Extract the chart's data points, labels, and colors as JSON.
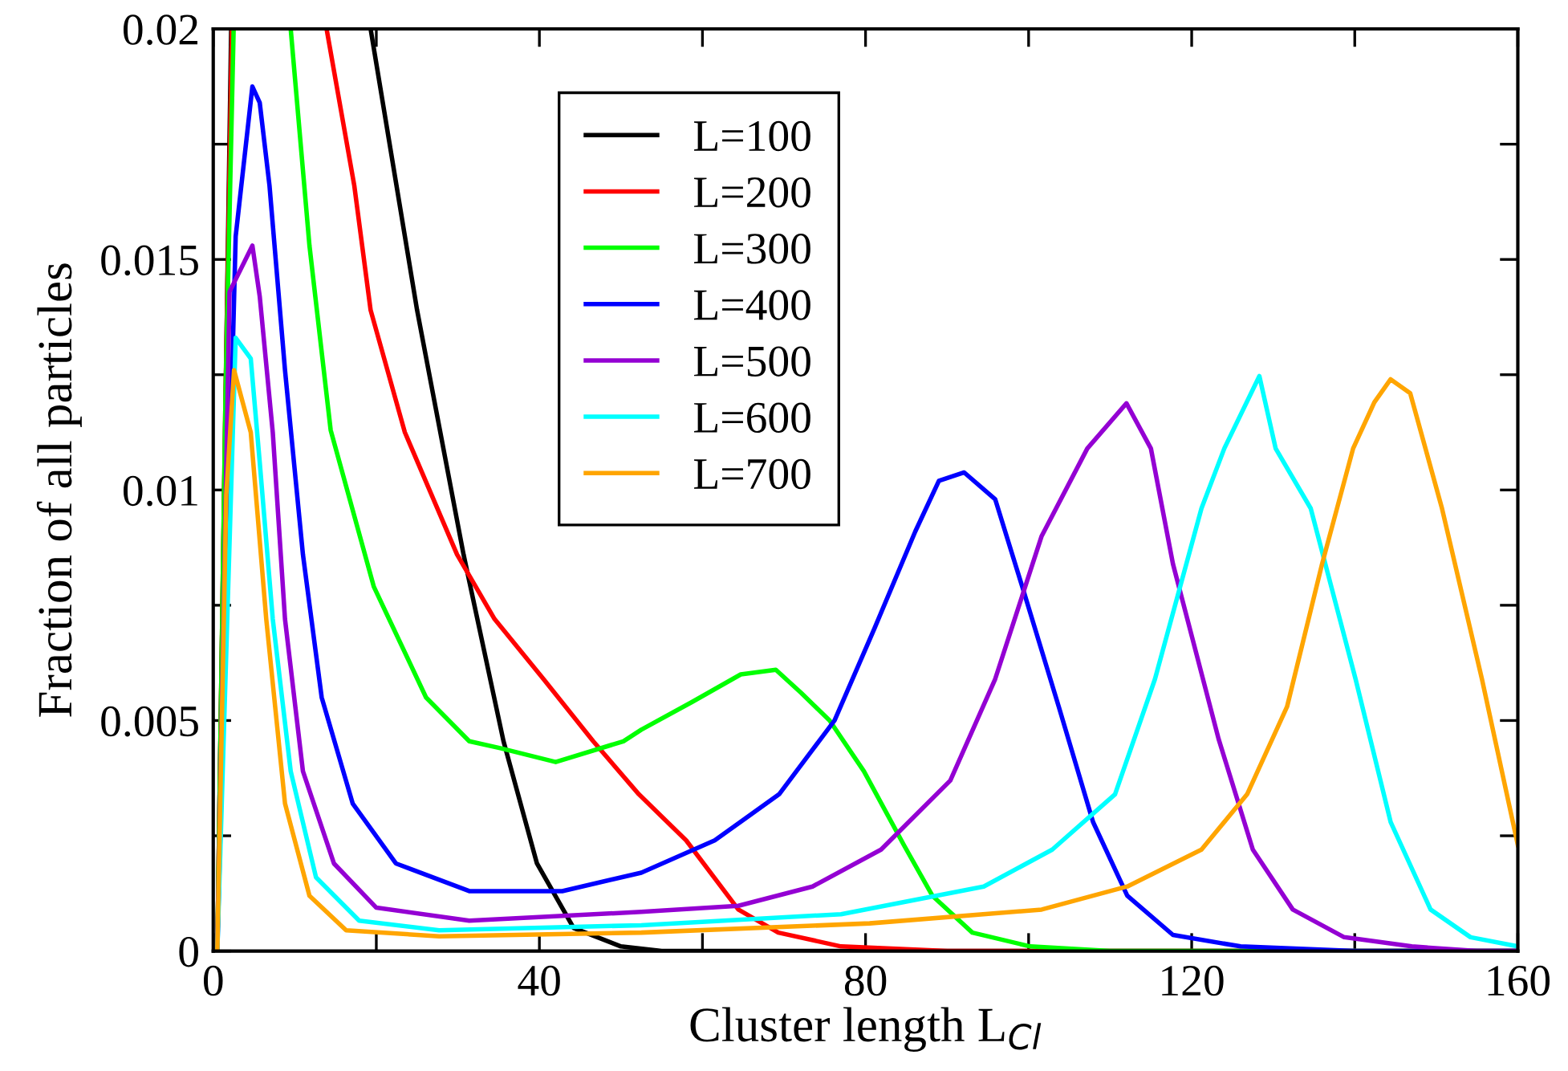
{
  "chart_data": {
    "type": "line",
    "xlabel": "Cluster length L$_{Cl}$",
    "ylabel": "Fraction of all particles",
    "xlim": [
      0,
      160
    ],
    "ylim": [
      0,
      0.02
    ],
    "xticks": [
      0,
      {
        "value": 20,
        "label": null
      },
      40,
      {
        "value": 60,
        "label": null
      },
      80,
      {
        "value": 100,
        "label": null
      },
      120,
      {
        "value": 140,
        "label": null
      },
      160
    ],
    "yticks": [
      0,
      {
        "value": 0.0025,
        "label": null
      },
      0.005,
      {
        "value": 0.0075,
        "label": null
      },
      0.01,
      {
        "value": 0.0125,
        "label": null
      },
      0.015,
      {
        "value": 0.0175,
        "label": null
      },
      0.02
    ],
    "grid": false,
    "legend": "top",
    "marker": "none",
    "line_style": "solid",
    "series": [
      {
        "name": "L=100",
        "color": "#000000",
        "x": [
          0.5,
          2.2,
          10,
          19.3,
          25,
          30.7,
          35.6,
          39.7,
          44.2,
          50,
          55,
          160
        ],
        "values": [
          0,
          0.02,
          null,
          0.02,
          0.0139,
          0.0086,
          0.00455,
          0.0019,
          0.0005,
          0.0001,
          0,
          0
        ]
      },
      {
        "name": "L=200",
        "color": "#ff0000",
        "x": [
          0.5,
          1.5,
          2.3,
          8,
          13.9,
          17.3,
          19.3,
          23.5,
          29.9,
          34.5,
          40.5,
          46.6,
          52.2,
          58,
          64.4,
          69.3,
          77,
          90,
          160
        ],
        "values": [
          0,
          0.012,
          0.02,
          null,
          0.02,
          0.0166,
          0.0139,
          0.01125,
          0.0086,
          0.0072,
          0.0059,
          0.00455,
          0.0034,
          0.0024,
          0.0009,
          0.0004,
          0.0001,
          0,
          0
        ]
      },
      {
        "name": "L=300",
        "color": "#00ff00",
        "x": [
          0.5,
          1.5,
          2.5,
          6,
          9.5,
          11.8,
          14.4,
          19.7,
          26.1,
          31.4,
          35.2,
          42,
          50.3,
          52.5,
          58.7,
          64.7,
          69,
          72.1,
          75.6,
          79.8,
          84.7,
          88.2,
          93.1,
          100.2,
          110,
          160
        ],
        "values": [
          0,
          0.012,
          0.02,
          null,
          0.02,
          0.0153,
          0.0113,
          0.0079,
          0.0055,
          0.00455,
          0.0044,
          0.0041,
          0.00455,
          0.0048,
          0.0054,
          0.006,
          0.0061,
          0.0056,
          0.005,
          0.0039,
          0.0023,
          0.0012,
          0.0004,
          0.0001,
          0,
          0
        ]
      },
      {
        "name": "L=400",
        "color": "#0000ff",
        "x": [
          0.5,
          2.75,
          4.8,
          5.7,
          6.9,
          8.8,
          11,
          13.3,
          17.1,
          22.4,
          31.4,
          42.8,
          52.5,
          61.5,
          69.4,
          76.2,
          81.1,
          86.1,
          89,
          92.1,
          95.9,
          99.4,
          103.7,
          107.9,
          112.1,
          117.7,
          126,
          140,
          160
        ],
        "values": [
          0,
          0.0155,
          0.01875,
          0.0184,
          0.0166,
          0.0126,
          0.0086,
          0.0055,
          0.0032,
          0.0019,
          0.0013,
          0.0013,
          0.0017,
          0.0024,
          0.0034,
          0.005,
          0.007,
          0.0091,
          0.0102,
          0.01038,
          0.0098,
          0.0078,
          0.0053,
          0.0028,
          0.0012,
          0.00035,
          0.0001,
          0,
          0
        ]
      },
      {
        "name": "L=500",
        "color": "#9400d3",
        "x": [
          0.5,
          2,
          4.8,
          5.7,
          7.3,
          8.8,
          11,
          14.8,
          20,
          31.4,
          52.5,
          64.4,
          73.5,
          81.9,
          90.4,
          95.9,
          101.6,
          107.2,
          112,
          115,
          117.7,
          123.3,
          127.5,
          132.4,
          138.7,
          147,
          155,
          160
        ],
        "values": [
          0,
          0.0143,
          0.0153,
          0.0142,
          0.01125,
          0.0072,
          0.0039,
          0.0019,
          0.00094,
          0.00066,
          0.00085,
          0.00098,
          0.0014,
          0.0022,
          0.0037,
          0.0059,
          0.009,
          0.0109,
          0.01188,
          0.0109,
          0.0084,
          0.0046,
          0.0022,
          0.0009,
          0.0003,
          0.0001,
          0,
          0
        ]
      },
      {
        "name": "L=600",
        "color": "#00ffff",
        "x": [
          0.5,
          2.75,
          4.6,
          5.7,
          7.3,
          9.5,
          12.6,
          17.9,
          27.7,
          52.5,
          77,
          94.5,
          102.9,
          110.6,
          115.5,
          121.2,
          124,
          128.3,
          130.3,
          134.6,
          140.1,
          144.4,
          149.3,
          154.2,
          160
        ],
        "values": [
          0,
          0.0133,
          0.01285,
          0.0106,
          0.0072,
          0.0039,
          0.0016,
          0.00066,
          0.00045,
          0.00056,
          0.0008,
          0.0014,
          0.0022,
          0.0034,
          0.0059,
          0.0096,
          0.0109,
          0.01247,
          0.0109,
          0.0096,
          0.0059,
          0.0028,
          0.0009,
          0.0003,
          0.0001
        ]
      },
      {
        "name": "L=700",
        "color": "#ffa500",
        "x": [
          0.5,
          1.6,
          2.55,
          4.6,
          6.5,
          8.8,
          11.8,
          16.3,
          27.7,
          52.5,
          80.5,
          101.6,
          112.1,
          121.2,
          126.8,
          131.7,
          136,
          139.8,
          142.4,
          144.4,
          146.8,
          150.7,
          155.6,
          160
        ],
        "values": [
          0,
          0.0099,
          0.0126,
          0.01125,
          0.0072,
          0.0032,
          0.0012,
          0.00045,
          0.00032,
          0.0004,
          0.0006,
          0.0009,
          0.0014,
          0.0022,
          0.0034,
          0.0053,
          0.0084,
          0.0109,
          0.0119,
          0.0124,
          0.0121,
          0.0096,
          0.0059,
          0.0023
        ]
      }
    ]
  }
}
